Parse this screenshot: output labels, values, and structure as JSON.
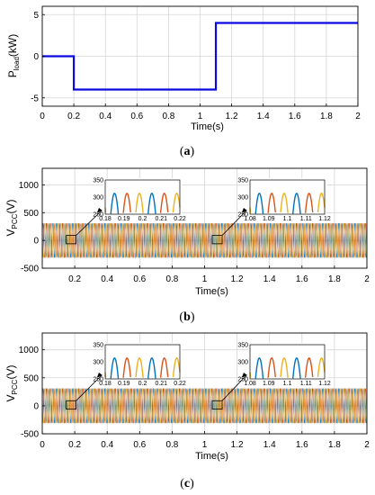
{
  "chart_data": [
    {
      "type": "line",
      "panel_label": "(a)",
      "ylabel": "P_load(kW)",
      "ylabel_main": "P",
      "ylabel_sub": "load",
      "ylabel_unit": "(kW)",
      "xlabel": "Time(s)",
      "xlim": [
        0,
        2
      ],
      "ylim": [
        -6,
        6
      ],
      "xticks": [
        "0",
        "0.2",
        "0.4",
        "0.6",
        "0.8",
        "1",
        "1.2",
        "1.4",
        "1.6",
        "1.8",
        "2"
      ],
      "yticks": [
        "5",
        "0",
        "-5"
      ],
      "grid": true,
      "series": [
        {
          "color": "#0a0ae0",
          "x": [
            0,
            0.2,
            0.2,
            1.1,
            1.1,
            2
          ],
          "y": [
            0,
            0,
            -4,
            -4,
            4,
            4
          ]
        }
      ]
    },
    {
      "type": "line",
      "panel_label": "(b)",
      "ylabel": "V_PCC(V)",
      "ylabel_main": "V",
      "ylabel_sub": "PCC",
      "ylabel_unit": "(V)",
      "xlabel": "Time(s)",
      "xlim": [
        0,
        2
      ],
      "ylim": [
        -500,
        1300
      ],
      "xticks": [
        "0.2",
        "0.4",
        "0.6",
        "0.8",
        "1",
        "1.2",
        "1.4",
        "1.6",
        "1.8",
        "2"
      ],
      "yticks": [
        "1000",
        "500",
        "0",
        "-500"
      ],
      "grid": true,
      "description_values": {
        "amplitude_V": 311,
        "frequency_Hz": 50
      },
      "series_colors": [
        "#0072bd",
        "#d95319",
        "#edb120"
      ],
      "insets": [
        {
          "xlim": [
            0.18,
            0.22
          ],
          "ylim": [
            250,
            350
          ],
          "xticks": [
            "0.18",
            "0.19",
            "0.2",
            "0.21",
            "0.22"
          ],
          "yticks": [
            "350",
            "300",
            "250"
          ],
          "peaks": [
            310,
            310,
            311,
            311,
            311,
            312
          ]
        },
        {
          "xlim": [
            1.08,
            1.12
          ],
          "ylim": [
            250,
            350
          ],
          "xticks": [
            "1.08",
            "1.09",
            "1.1",
            "1.11",
            "1.12"
          ],
          "yticks": [
            "350",
            "300",
            "250"
          ],
          "peaks": [
            310,
            310,
            311,
            311,
            311,
            312
          ]
        }
      ]
    },
    {
      "type": "line",
      "panel_label": "(c)",
      "ylabel": "V_PCC(V)",
      "ylabel_main": "V",
      "ylabel_sub": "PCC",
      "ylabel_unit": "(V)",
      "xlabel": "Time(s)",
      "xlim": [
        0,
        2
      ],
      "ylim": [
        -500,
        1300
      ],
      "xticks": [
        "0",
        "0.2",
        "0.4",
        "0.6",
        "0.8",
        "1",
        "1.2",
        "1.4",
        "1.6",
        "1.8",
        "2"
      ],
      "yticks": [
        "1000",
        "500",
        "0",
        "-500"
      ],
      "grid": true,
      "description_values": {
        "amplitude_V": 311,
        "frequency_Hz": 50
      },
      "series_colors": [
        "#0072bd",
        "#d95319",
        "#edb120"
      ],
      "insets": [
        {
          "xlim": [
            0.18,
            0.22
          ],
          "ylim": [
            250,
            350
          ],
          "xticks": [
            "0.18",
            "0.19",
            "0.2",
            "0.21",
            "0.22"
          ],
          "yticks": [
            "350",
            "300",
            "250"
          ],
          "peaks": [
            310,
            311,
            310,
            311,
            310,
            311
          ]
        },
        {
          "xlim": [
            1.08,
            1.12
          ],
          "ylim": [
            250,
            350
          ],
          "xticks": [
            "1.08",
            "1.09",
            "1.1",
            "1.11",
            "1.12"
          ],
          "yticks": [
            "350",
            "300",
            "250"
          ],
          "peaks": [
            311,
            310,
            311,
            310,
            311,
            310
          ]
        }
      ]
    }
  ]
}
